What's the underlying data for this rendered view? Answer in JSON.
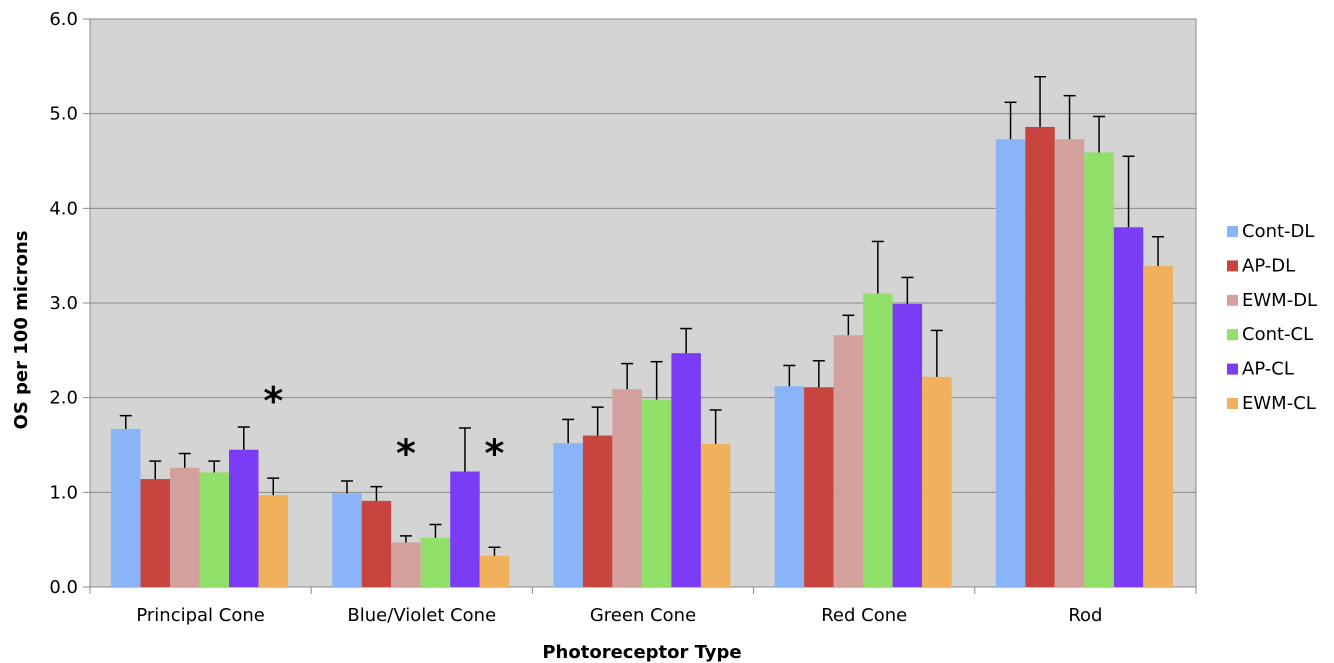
{
  "chart_data": {
    "type": "bar",
    "title": "",
    "xlabel": "Photoreceptor Type",
    "ylabel": "OS per 100 microns",
    "ylim": [
      0,
      6
    ],
    "yticks": [
      "0.0",
      "1.0",
      "2.0",
      "3.0",
      "4.0",
      "5.0",
      "6.0"
    ],
    "grid": true,
    "legend_position": "right",
    "categories": [
      "Principal Cone",
      "Blue/Violet Cone",
      "Green Cone",
      "Red Cone",
      "Rod"
    ],
    "series": [
      {
        "name": "Cont-DL",
        "color": "#8ab4f8",
        "values": [
          1.67,
          0.99,
          1.52,
          2.12,
          4.73
        ],
        "errors": [
          0.14,
          0.13,
          0.25,
          0.22,
          0.39
        ]
      },
      {
        "name": "AP-DL",
        "color": "#c8453f",
        "values": [
          1.14,
          0.91,
          1.6,
          2.11,
          4.86
        ],
        "errors": [
          0.19,
          0.15,
          0.3,
          0.28,
          0.53
        ]
      },
      {
        "name": "EWM-DL",
        "color": "#d4a09e",
        "values": [
          1.26,
          0.47,
          2.09,
          2.66,
          4.73
        ],
        "errors": [
          0.15,
          0.07,
          0.27,
          0.21,
          0.46
        ]
      },
      {
        "name": "Cont-CL",
        "color": "#90e06a",
        "values": [
          1.21,
          0.52,
          1.98,
          3.1,
          4.59
        ],
        "errors": [
          0.12,
          0.14,
          0.4,
          0.55,
          0.38
        ]
      },
      {
        "name": "AP-CL",
        "color": "#7a3df5",
        "values": [
          1.45,
          1.22,
          2.47,
          2.99,
          3.8
        ],
        "errors": [
          0.24,
          0.46,
          0.26,
          0.28,
          0.75
        ]
      },
      {
        "name": "EWM-CL",
        "color": "#f0b05c",
        "values": [
          0.97,
          0.33,
          1.51,
          2.22,
          3.39
        ],
        "errors": [
          0.18,
          0.09,
          0.36,
          0.49,
          0.31
        ]
      }
    ],
    "annotations": [
      {
        "text": "*",
        "category": "Principal Cone",
        "series": "EWM-CL",
        "y": 2.1
      },
      {
        "text": "*",
        "category": "Blue/Violet Cone",
        "series": "EWM-DL",
        "y": 1.55
      },
      {
        "text": "*",
        "category": "Blue/Violet Cone",
        "series": "EWM-CL",
        "y": 1.55
      }
    ]
  }
}
